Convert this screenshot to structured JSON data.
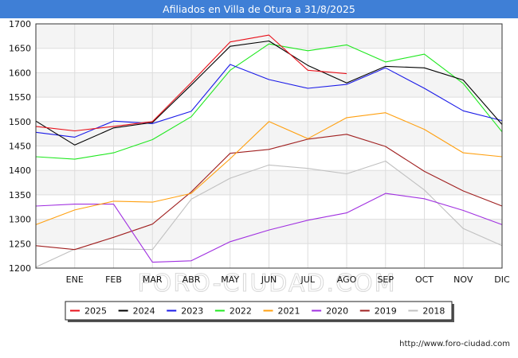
{
  "title": "Afiliados en Villa de Otura a 31/8/2025",
  "watermark": "FORO-CIUDAD.COM",
  "footer": "http://www.foro-ciudad.com",
  "chart_data": {
    "type": "line",
    "title": "Afiliados en Villa de Otura a 31/8/2025",
    "xlabel": "",
    "ylabel": "",
    "categories": [
      "",
      "ENE",
      "FEB",
      "MAR",
      "ABR",
      "MAY",
      "JUN",
      "JUL",
      "AGO",
      "SEP",
      "OCT",
      "NOV",
      "DIC"
    ],
    "ylim": [
      1200,
      1700
    ],
    "yticks": [
      1200,
      1250,
      1300,
      1350,
      1400,
      1450,
      1500,
      1550,
      1600,
      1650,
      1700
    ],
    "grid": true,
    "legend_position": "bottom",
    "series": [
      {
        "name": "2025",
        "color": "#e8101a",
        "values": [
          1490,
          1481,
          1490,
          1500,
          1580,
          1663,
          1677,
          1605,
          1598,
          null,
          null,
          null,
          null
        ]
      },
      {
        "name": "2024",
        "color": "#000000",
        "values": [
          1501,
          1452,
          1487,
          1498,
          1575,
          1654,
          1665,
          1615,
          1579,
          1613,
          1610,
          1585,
          1494
        ]
      },
      {
        "name": "2023",
        "color": "#1a1ae8",
        "values": [
          1478,
          1468,
          1501,
          1496,
          1521,
          1617,
          1586,
          1568,
          1576,
          1610,
          1568,
          1522,
          1502
        ]
      },
      {
        "name": "2022",
        "color": "#1fe81f",
        "values": [
          1428,
          1423,
          1436,
          1463,
          1510,
          1605,
          1659,
          1645,
          1657,
          1622,
          1638,
          1578,
          1479
        ]
      },
      {
        "name": "2021",
        "color": "#ffa010",
        "values": [
          1289,
          1319,
          1337,
          1335,
          1353,
          1424,
          1500,
          1465,
          1508,
          1518,
          1484,
          1436,
          1428
        ]
      },
      {
        "name": "2020",
        "color": "#a030e0",
        "values": [
          1327,
          1331,
          1331,
          1212,
          1215,
          1254,
          1278,
          1298,
          1313,
          1353,
          1342,
          1318,
          1289
        ]
      },
      {
        "name": "2019",
        "color": "#a02020",
        "values": [
          1246,
          1238,
          1263,
          1290,
          1356,
          1435,
          1443,
          1464,
          1474,
          1449,
          1398,
          1358,
          1327
        ]
      },
      {
        "name": "2018",
        "color": "#c0c0c0",
        "values": [
          1202,
          1239,
          1239,
          1238,
          1341,
          1384,
          1411,
          1404,
          1393,
          1419,
          1360,
          1281,
          1246
        ]
      }
    ]
  }
}
